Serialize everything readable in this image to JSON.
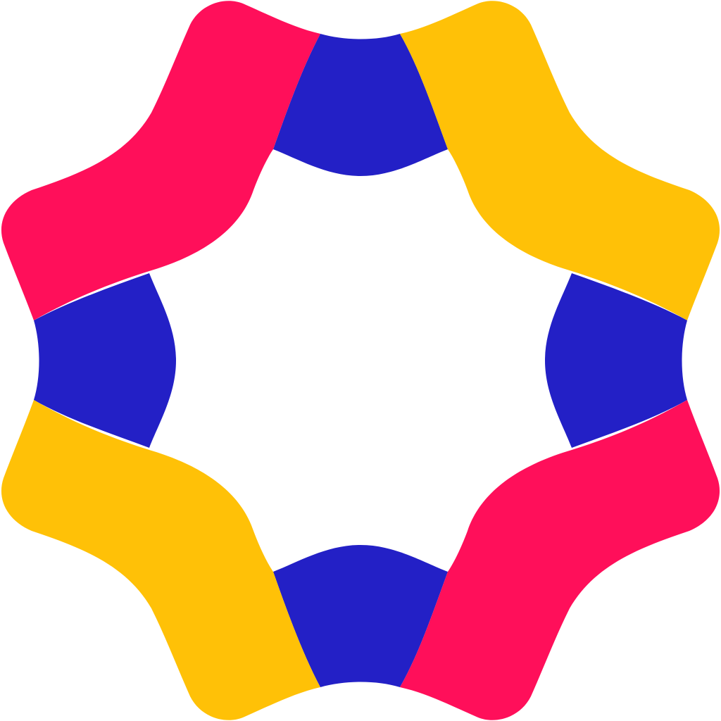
{
  "logo": {
    "shape": "eight-point-gear-ring",
    "colors": {
      "blue": "#2320C6",
      "pink": "#FF0F5A",
      "yellow": "#FFC107",
      "background": "#FFFFFF"
    },
    "segments": [
      {
        "name": "top",
        "color": "blue"
      },
      {
        "name": "top-right",
        "color": "yellow"
      },
      {
        "name": "right",
        "color": "blue"
      },
      {
        "name": "bottom-right",
        "color": "pink"
      },
      {
        "name": "bottom",
        "color": "blue"
      },
      {
        "name": "bottom-left",
        "color": "yellow"
      },
      {
        "name": "left",
        "color": "blue"
      },
      {
        "name": "top-left",
        "color": "pink"
      }
    ]
  }
}
